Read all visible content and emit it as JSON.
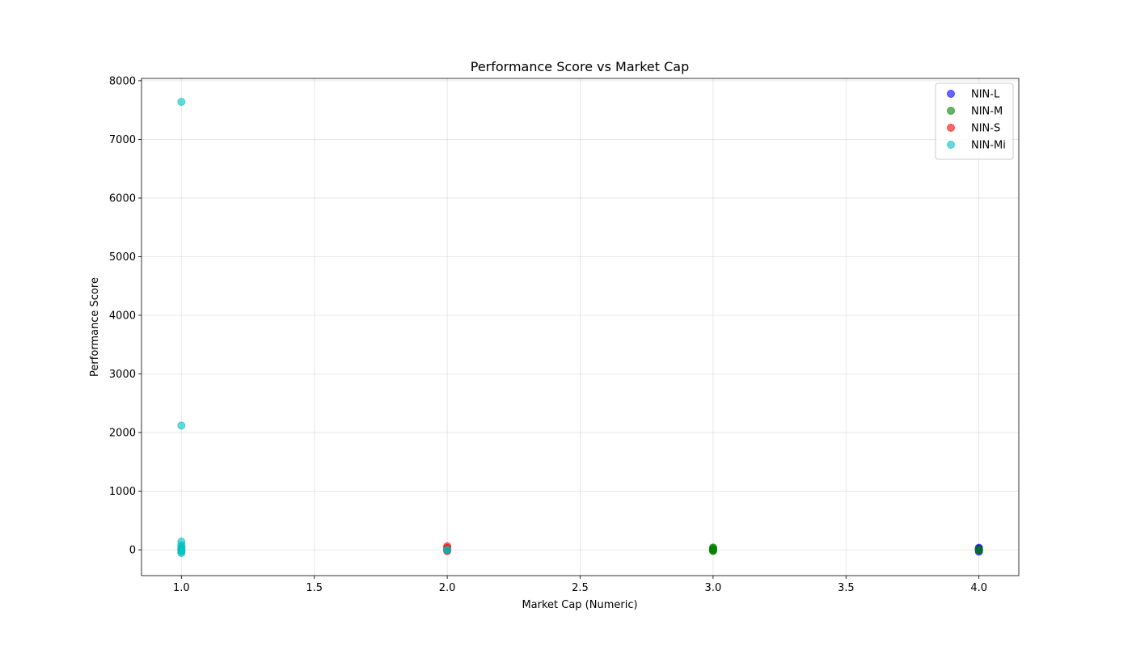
{
  "chart_data": {
    "type": "scatter",
    "title": "Performance Score vs Market Cap",
    "xlabel": "Market Cap (Numeric)",
    "ylabel": "Performance Score",
    "xlim": [
      0.85,
      4.15
    ],
    "ylim": [
      -440,
      8040
    ],
    "xticks": [
      1.0,
      1.5,
      2.0,
      2.5,
      3.0,
      3.5,
      4.0
    ],
    "xtick_labels": [
      "1.0",
      "1.5",
      "2.0",
      "2.5",
      "3.0",
      "3.5",
      "4.0"
    ],
    "yticks": [
      0,
      1000,
      2000,
      3000,
      4000,
      5000,
      6000,
      7000,
      8000
    ],
    "ytick_labels": [
      "0",
      "1000",
      "2000",
      "3000",
      "4000",
      "5000",
      "6000",
      "7000",
      "8000"
    ],
    "grid": true,
    "legend_position": "top-right",
    "series": [
      {
        "name": "NIN-L",
        "color": "#0000ff",
        "points": [
          [
            4.0,
            35
          ],
          [
            4.0,
            20
          ],
          [
            4.0,
            10
          ],
          [
            4.0,
            0
          ],
          [
            4.0,
            -10
          ],
          [
            4.0,
            -30
          ]
        ]
      },
      {
        "name": "NIN-M",
        "color": "#008000",
        "points": [
          [
            3.0,
            40
          ],
          [
            3.0,
            25
          ],
          [
            3.0,
            10
          ],
          [
            3.0,
            0
          ],
          [
            3.0,
            -10
          ],
          [
            3.0,
            -20
          ],
          [
            4.0,
            5
          ],
          [
            4.0,
            -5
          ]
        ]
      },
      {
        "name": "NIN-S",
        "color": "#ff0000",
        "points": [
          [
            2.0,
            60
          ],
          [
            2.0,
            30
          ],
          [
            2.0,
            10
          ],
          [
            2.0,
            0
          ],
          [
            2.0,
            -10
          ],
          [
            2.0,
            -20
          ]
        ]
      },
      {
        "name": "NIN-Mi",
        "color": "#00bfbf",
        "points": [
          [
            1.0,
            7640
          ],
          [
            1.0,
            2120
          ],
          [
            1.0,
            140
          ],
          [
            1.0,
            80
          ],
          [
            1.0,
            50
          ],
          [
            1.0,
            25
          ],
          [
            1.0,
            10
          ],
          [
            1.0,
            0
          ],
          [
            1.0,
            -15
          ],
          [
            1.0,
            -30
          ],
          [
            1.0,
            -55
          ],
          [
            2.0,
            5
          ],
          [
            2.0,
            -5
          ]
        ]
      }
    ]
  }
}
